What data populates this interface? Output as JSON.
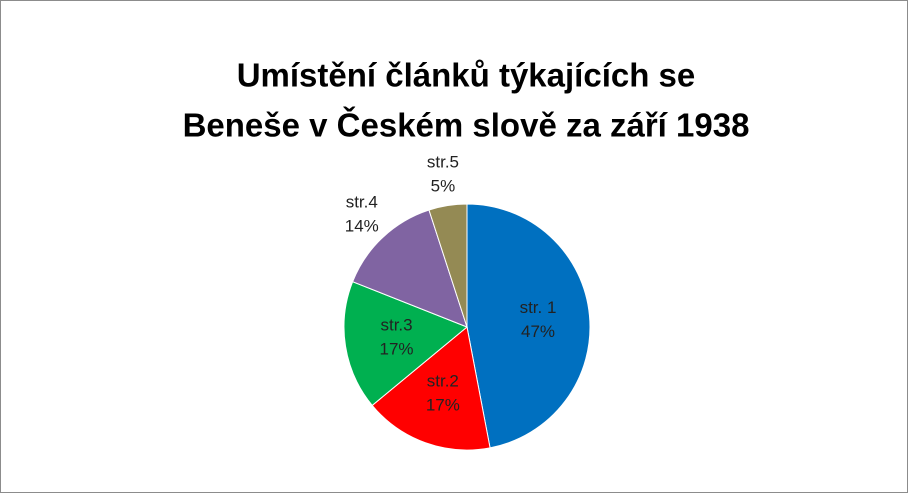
{
  "chart_data": {
    "type": "pie",
    "title": [
      "Umístění článků týkajících se",
      "Beneše v Českém slově za září 1938"
    ],
    "categories": [
      "str. 1",
      "str.2",
      "str.3",
      "str.4",
      "str.5"
    ],
    "values": [
      47,
      17,
      17,
      14,
      5
    ],
    "value_labels": [
      "47%",
      "17%",
      "17%",
      "14%",
      "5%"
    ],
    "colors": [
      "#0070c0",
      "#ff0000",
      "#00b050",
      "#8064a2",
      "#948a54"
    ]
  }
}
